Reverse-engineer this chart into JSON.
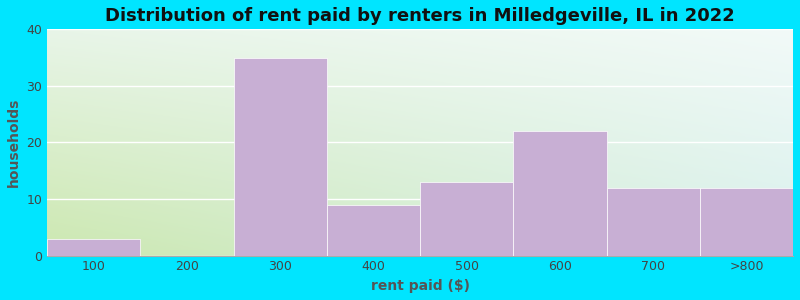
{
  "categories": [
    "100",
    "200",
    "300",
    "400",
    "500",
    "600",
    "700",
    ">800"
  ],
  "values": [
    3,
    0,
    35,
    9,
    13,
    22,
    12,
    12
  ],
  "bar_color": "#c8afd4",
  "title": "Distribution of rent paid by renters in Milledgeville, IL in 2022",
  "xlabel": "rent paid ($)",
  "ylabel": "households",
  "ylim": [
    0,
    40
  ],
  "yticks": [
    0,
    10,
    20,
    30,
    40
  ],
  "outer_bg": "#00e5ff",
  "title_fontsize": 13,
  "label_fontsize": 10,
  "tick_fontsize": 9,
  "bg_colors": [
    "#cce8b0",
    "#ddf0d0",
    "#eaf5e8",
    "#f0f8f4",
    "#f5faf8",
    "#f8fcfa",
    "#fafcfc",
    "#fcfefe"
  ],
  "bg_left": "#cce8b0",
  "bg_right": "#e8f8f4"
}
